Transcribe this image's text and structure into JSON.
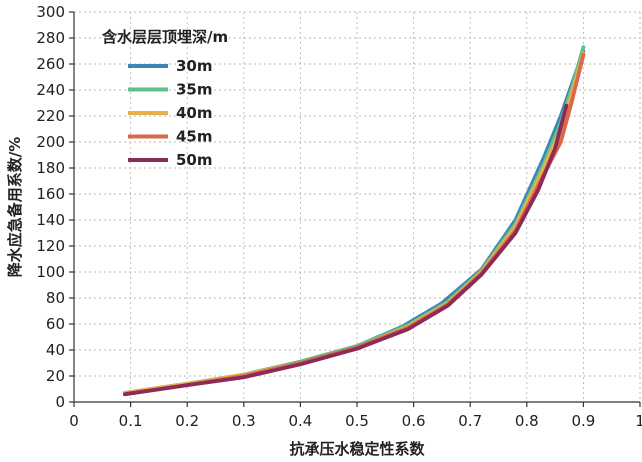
{
  "chart_data": {
    "type": "line",
    "title": "",
    "xlabel": "抗承压水稳定性系数",
    "ylabel": "降水应急备用系数/%",
    "xlim": [
      0,
      1
    ],
    "ylim": [
      0,
      300
    ],
    "xticks": [
      0,
      0.1,
      0.2,
      0.3,
      0.4,
      0.5,
      0.6,
      0.7,
      0.8,
      0.9,
      1
    ],
    "xtick_labels": [
      "0",
      "0.1",
      "0.2",
      "0.3",
      "0.4",
      "0.5",
      "0.6",
      "0.7",
      "0.8",
      "0.9",
      "1"
    ],
    "yticks": [
      0,
      20,
      40,
      60,
      80,
      100,
      120,
      140,
      160,
      180,
      200,
      220,
      240,
      260,
      280,
      300
    ],
    "ytick_labels": [
      "0",
      "20",
      "40",
      "60",
      "80",
      "100",
      "120",
      "140",
      "160",
      "180",
      "200",
      "220",
      "240",
      "260",
      "280",
      "300"
    ],
    "grid": true,
    "legend": {
      "title": "含水层层顶埋深/m",
      "placement": "top-left"
    },
    "series": [
      {
        "name": "30m",
        "color": "#3a86b4",
        "x": [
          0.09,
          0.2,
          0.3,
          0.4,
          0.5,
          0.58,
          0.65,
          0.72,
          0.78,
          0.83,
          0.86,
          0.88,
          0.9
        ],
        "y": [
          7,
          14,
          21,
          31,
          43,
          58,
          76,
          102,
          140,
          188,
          220,
          245,
          270
        ]
      },
      {
        "name": "35m",
        "color": "#5fc08c",
        "x": [
          0.09,
          0.2,
          0.3,
          0.4,
          0.5,
          0.59,
          0.66,
          0.72,
          0.78,
          0.83,
          0.86,
          0.88,
          0.9
        ],
        "y": [
          7,
          14,
          21,
          31,
          43,
          59,
          77,
          101,
          137,
          183,
          215,
          242,
          273
        ]
      },
      {
        "name": "40m",
        "color": "#e8b04a",
        "x": [
          0.09,
          0.2,
          0.3,
          0.4,
          0.5,
          0.59,
          0.66,
          0.72,
          0.78,
          0.83,
          0.86,
          0.88,
          0.9
        ],
        "y": [
          7,
          14,
          21,
          30,
          42,
          58,
          76,
          100,
          135,
          180,
          210,
          238,
          268
        ]
      },
      {
        "name": "45m",
        "color": "#d9694a",
        "x": [
          0.09,
          0.2,
          0.3,
          0.4,
          0.5,
          0.59,
          0.66,
          0.72,
          0.78,
          0.83,
          0.86,
          0.88,
          0.9
        ],
        "y": [
          6,
          13,
          20,
          30,
          42,
          57,
          75,
          99,
          132,
          175,
          200,
          232,
          267
        ]
      },
      {
        "name": "50m",
        "color": "#8c2a5a",
        "x": [
          0.09,
          0.2,
          0.3,
          0.4,
          0.5,
          0.59,
          0.66,
          0.72,
          0.78,
          0.82,
          0.85,
          0.87
        ],
        "y": [
          6,
          13,
          19,
          29,
          41,
          56,
          74,
          98,
          130,
          163,
          195,
          228
        ]
      }
    ]
  }
}
